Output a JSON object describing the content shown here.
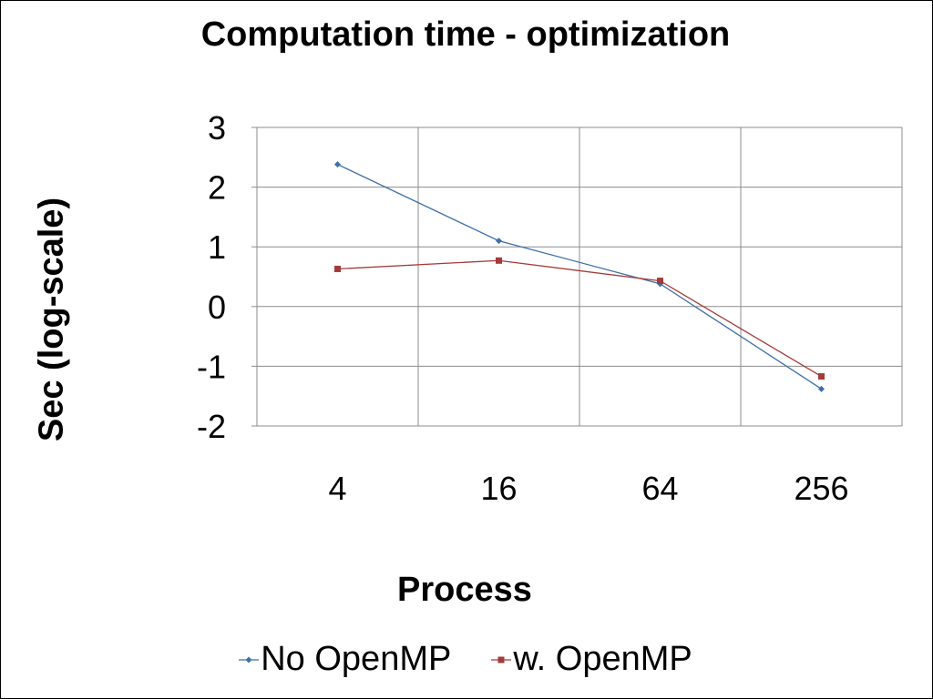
{
  "chart_data": {
    "type": "line",
    "title": "Computation time - optimization",
    "xlabel": "Process",
    "ylabel": "Sec (log-scale)",
    "categories": [
      "4",
      "16",
      "64",
      "256"
    ],
    "ylim": [
      -2,
      3
    ],
    "yticks": [
      3,
      2,
      1,
      0,
      -1,
      -2
    ],
    "grid": true,
    "legend_position": "bottom",
    "series": [
      {
        "name": "No OpenMP",
        "color": "#3f6fa8",
        "marker": "diamond",
        "values": [
          2.38,
          1.1,
          0.38,
          -1.38
        ]
      },
      {
        "name": "w. OpenMP",
        "color": "#a33b39",
        "marker": "square",
        "values": [
          0.63,
          0.77,
          0.43,
          -1.17
        ]
      }
    ]
  }
}
